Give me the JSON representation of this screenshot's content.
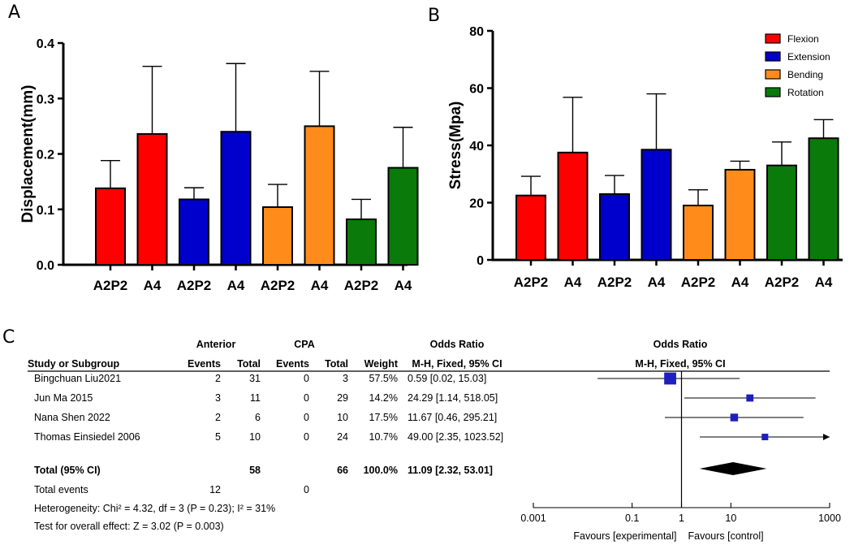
{
  "panels": {
    "a": "A",
    "b": "B",
    "c": "C"
  },
  "colors": {
    "Flexion": "#ff0000",
    "Extension": "#0000cc",
    "Bending": "#ff8c1a",
    "Rotation": "#0a7a0a",
    "forest_square": "#1f1fbf",
    "diamond": "#000000"
  },
  "chart_data": [
    {
      "type": "bar",
      "title": "",
      "xlabel": "",
      "ylabel": "Displacement(mm)",
      "ylim": [
        0,
        0.4
      ],
      "yticks": [
        "0.0",
        "0.1",
        "0.2",
        "0.3",
        "0.4"
      ],
      "categories": [
        "A2P2",
        "A4",
        "A2P2",
        "A4",
        "A2P2",
        "A4",
        "A2P2",
        "A4"
      ],
      "groups": [
        "Flexion",
        "Flexion",
        "Extension",
        "Extension",
        "Bending",
        "Bending",
        "Rotation",
        "Rotation"
      ],
      "values": [
        0.138,
        0.236,
        0.118,
        0.24,
        0.104,
        0.25,
        0.082,
        0.175
      ],
      "error_upper": [
        0.188,
        0.358,
        0.139,
        0.363,
        0.145,
        0.349,
        0.118,
        0.248
      ]
    },
    {
      "type": "bar",
      "title": "",
      "xlabel": "",
      "ylabel": "Stress(Mpa)",
      "ylim": [
        0,
        80
      ],
      "yticks": [
        "0",
        "20",
        "40",
        "60",
        "80"
      ],
      "categories": [
        "A2P2",
        "A4",
        "A2P2",
        "A4",
        "A2P2",
        "A4",
        "A2P2",
        "A4"
      ],
      "groups": [
        "Flexion",
        "Flexion",
        "Extension",
        "Extension",
        "Bending",
        "Bending",
        "Rotation",
        "Rotation"
      ],
      "values": [
        22.5,
        37.5,
        23.0,
        38.5,
        19.0,
        31.5,
        33.0,
        42.5
      ],
      "error_upper": [
        29.2,
        56.8,
        29.5,
        58.0,
        24.5,
        34.5,
        41.2,
        49.0
      ],
      "legend": [
        "Flexion",
        "Extension",
        "Bending",
        "Rotation"
      ],
      "legend_position": "top-right"
    },
    {
      "type": "table",
      "headers": {
        "group_exp": "Anterior",
        "group_ctl": "CPA",
        "study": "Study or Subgroup",
        "events": "Events",
        "total": "Total",
        "weight": "Weight",
        "or_title": "Odds Ratio",
        "or_method": "M-H, Fixed, 95% CI",
        "plot_title": "Odds Ratio",
        "plot_method": "M-H, Fixed, 95% CI"
      },
      "studies": [
        {
          "name": "Bingchuan Liu2021",
          "e_events": "2",
          "e_total": "31",
          "c_events": "0",
          "c_total": "3",
          "weight": "57.5%",
          "ci_text": "0.59 [0.02, 15.03]",
          "or": 0.59,
          "lo": 0.02,
          "hi": 15.03,
          "w": 57.5
        },
        {
          "name": "Jun Ma 2015",
          "e_events": "3",
          "e_total": "11",
          "c_events": "0",
          "c_total": "29",
          "weight": "14.2%",
          "ci_text": "24.29 [1.14, 518.05]",
          "or": 24.29,
          "lo": 1.14,
          "hi": 518.05,
          "w": 14.2
        },
        {
          "name": "Nana Shen 2022",
          "e_events": "2",
          "e_total": "6",
          "c_events": "0",
          "c_total": "10",
          "weight": "17.5%",
          "ci_text": "11.67 [0.46, 295.21]",
          "or": 11.67,
          "lo": 0.46,
          "hi": 295.21,
          "w": 17.5
        },
        {
          "name": "Thomas Einsiedel 2006",
          "e_events": "5",
          "e_total": "10",
          "c_events": "0",
          "c_total": "24",
          "weight": "10.7%",
          "ci_text": "49.00 [2.35, 1023.52]",
          "or": 49.0,
          "lo": 2.35,
          "hi": 1023.52,
          "w": 10.7
        }
      ],
      "total": {
        "label": "Total (95% CI)",
        "e_total": "58",
        "c_total": "66",
        "weight": "100.0%",
        "ci_text": "11.09 [2.32, 53.01]",
        "or": 11.09,
        "lo": 2.32,
        "hi": 53.01
      },
      "total_events": {
        "label": "Total events",
        "e": "12",
        "c": "0"
      },
      "heterogeneity": "Heterogeneity: Chi² = 4.32, df = 3 (P = 0.23); I² = 31%",
      "overall_effect": "Test for overall effect: Z = 3.02 (P = 0.003)",
      "x_scale": "log",
      "xlim": [
        0.001,
        1000
      ],
      "xticks": [
        0.001,
        0.1,
        1,
        10,
        1000
      ],
      "xtick_labels": [
        "0.001",
        "0.1",
        "1",
        "10",
        "1000"
      ],
      "favours_left": "Favours [experimental]",
      "favours_right": "Favours [control]"
    }
  ]
}
